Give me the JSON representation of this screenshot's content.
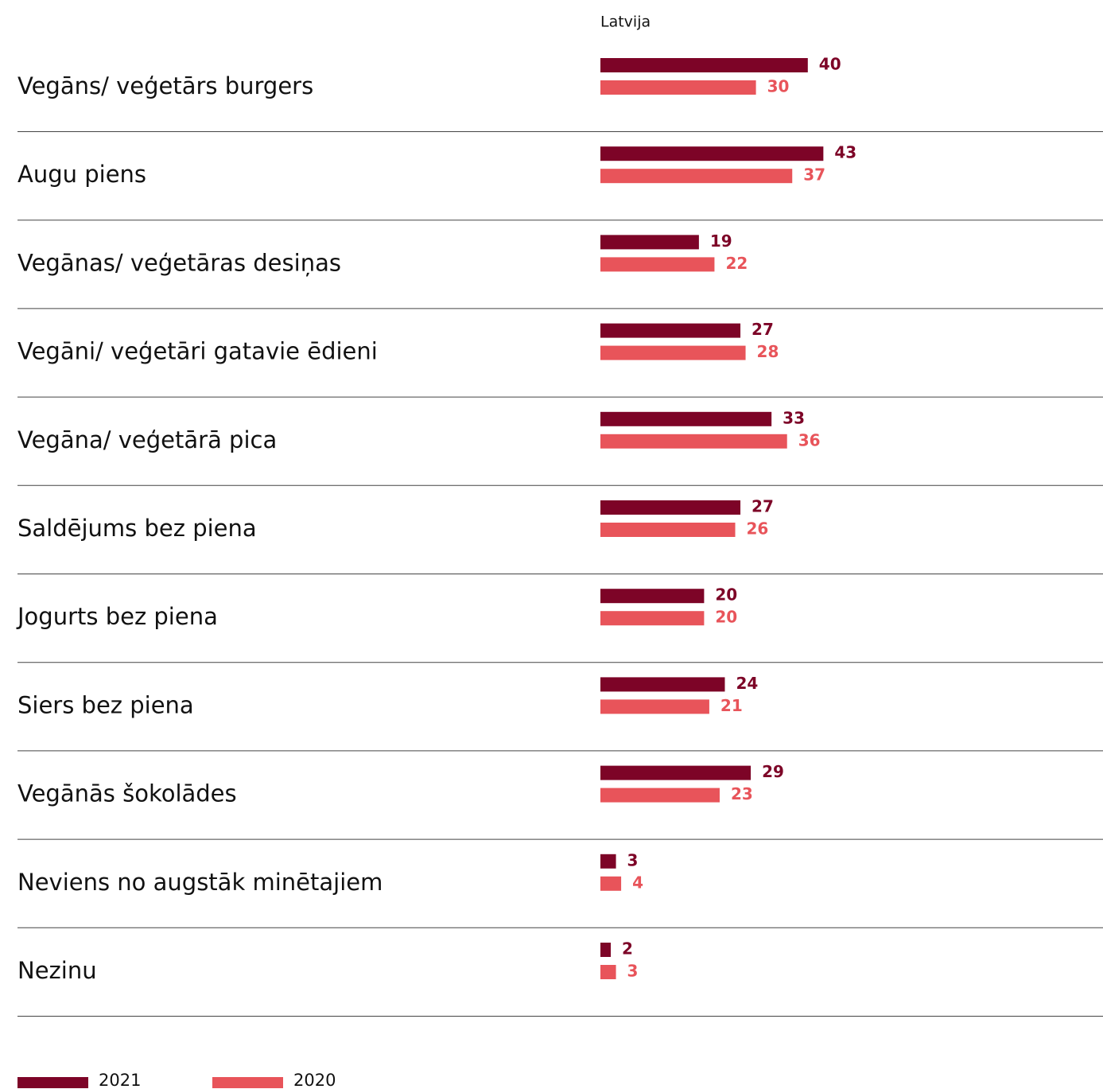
{
  "chart_data": {
    "type": "bar",
    "orientation": "horizontal",
    "subtitle": "Latvija",
    "categories": [
      "Vegāns/ veģetārs burgers",
      "Augu piens",
      "Vegānas/ veģetāras desiņas",
      "Vegāni/ veģetāri gatavie ēdieni",
      "Vegāna/ veģetārā pica",
      "Saldējums bez piena",
      "Jogurts bez piena",
      "Siers bez piena",
      "Vegānās šokolādes",
      "Neviens no augstāk minētajiem",
      "Nezinu"
    ],
    "series": [
      {
        "name": "2021",
        "color": "#7d0427",
        "values": [
          40,
          43,
          19,
          27,
          33,
          27,
          20,
          24,
          29,
          3,
          2
        ]
      },
      {
        "name": "2020",
        "color": "#e8545a",
        "values": [
          30,
          37,
          22,
          28,
          36,
          26,
          20,
          21,
          23,
          4,
          3
        ]
      }
    ]
  }
}
